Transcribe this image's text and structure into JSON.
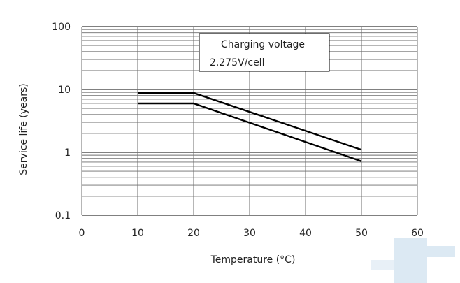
{
  "chart_data": {
    "type": "line",
    "title": "",
    "xlabel": "Temperature (°C)",
    "ylabel": "Service life (years)",
    "x_scale": "linear",
    "y_scale": "log",
    "xlim": [
      0,
      60
    ],
    "ylim": [
      0.1,
      100
    ],
    "x_ticks": [
      0,
      10,
      20,
      30,
      40,
      50,
      60
    ],
    "y_ticks": [
      0.1,
      1,
      10,
      100
    ],
    "x_tick_labels": [
      "0",
      "10",
      "20",
      "30",
      "40",
      "50",
      "60"
    ],
    "y_tick_labels": [
      "0.1",
      "1",
      "10",
      "100"
    ],
    "grid": true,
    "annotation_lines": [
      "Charging voltage",
      "2.275V/cell"
    ],
    "series": [
      {
        "x": [
          10,
          20,
          50
        ],
        "y": [
          8.8,
          8.8,
          1.1
        ],
        "color": "#000000"
      },
      {
        "x": [
          10,
          20,
          50
        ],
        "y": [
          6.0,
          6.0,
          0.72
        ],
        "color": "#000000"
      }
    ],
    "colors": {
      "grid": "#6e6e6e",
      "frame": "#a9a9a9",
      "background": "#ffffff",
      "watermark": "#dce9f3"
    }
  }
}
